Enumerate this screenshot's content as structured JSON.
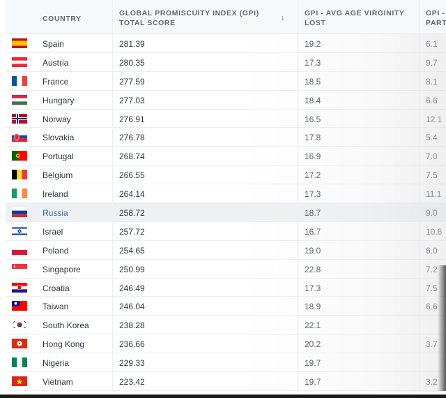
{
  "table": {
    "headers": {
      "country": "COUNTRY",
      "gpi": "GLOBAL PROMISCUITY INDEX (GPI) TOTAL SCORE",
      "sort_indicator": "↓",
      "virgin": "GPI - AVG AGE VIRGINITY LOST",
      "partners": "GPI - PARTI"
    },
    "rows": [
      {
        "flag": "es",
        "country": "Spain",
        "gpi": "281.39",
        "virgin": "19.2",
        "partners": "6.1"
      },
      {
        "flag": "at",
        "country": "Austria",
        "gpi": "280.35",
        "virgin": "17.3",
        "partners": "9.7"
      },
      {
        "flag": "fr",
        "country": "France",
        "gpi": "277.59",
        "virgin": "18.5",
        "partners": "8.1"
      },
      {
        "flag": "hu",
        "country": "Hungary",
        "gpi": "277.03",
        "virgin": "18.4",
        "partners": "6.6"
      },
      {
        "flag": "no",
        "country": "Norway",
        "gpi": "276.91",
        "virgin": "16.5",
        "partners": "12.1"
      },
      {
        "flag": "sk",
        "country": "Slovakia",
        "gpi": "276.78",
        "virgin": "17.8",
        "partners": "5.4"
      },
      {
        "flag": "pt",
        "country": "Portugal",
        "gpi": "268.74",
        "virgin": "16.9",
        "partners": "7.0"
      },
      {
        "flag": "be",
        "country": "Belgium",
        "gpi": "266.55",
        "virgin": "17.2",
        "partners": "7.5"
      },
      {
        "flag": "ie",
        "country": "Ireland",
        "gpi": "264.14",
        "virgin": "17.3",
        "partners": "11.1"
      },
      {
        "flag": "ru",
        "country": "Russia",
        "gpi": "258.72",
        "virgin": "18.7",
        "partners": "9.0"
      },
      {
        "flag": "il",
        "country": "Israel",
        "gpi": "257.72",
        "virgin": "16.7",
        "partners": "10.6"
      },
      {
        "flag": "pl",
        "country": "Poland",
        "gpi": "254.65",
        "virgin": "19.0",
        "partners": "6.0"
      },
      {
        "flag": "sg",
        "country": "Singapore",
        "gpi": "250.99",
        "virgin": "22.8",
        "partners": "7.2"
      },
      {
        "flag": "hr",
        "country": "Croatia",
        "gpi": "246.49",
        "virgin": "17.3",
        "partners": "7.5"
      },
      {
        "flag": "tw",
        "country": "Taiwan",
        "gpi": "246.04",
        "virgin": "18.9",
        "partners": "6.6"
      },
      {
        "flag": "kr",
        "country": "South Korea",
        "gpi": "238.28",
        "virgin": "22.1",
        "partners": ""
      },
      {
        "flag": "hk",
        "country": "Hong Kong",
        "gpi": "236.66",
        "virgin": "20.2",
        "partners": "3.7"
      },
      {
        "flag": "ng",
        "country": "Nigeria",
        "gpi": "229.33",
        "virgin": "19.7",
        "partners": ""
      },
      {
        "flag": "vn",
        "country": "Vietnam",
        "gpi": "223.42",
        "virgin": "19.7",
        "partners": "3.2"
      }
    ],
    "highlighted_country": "Russia"
  }
}
